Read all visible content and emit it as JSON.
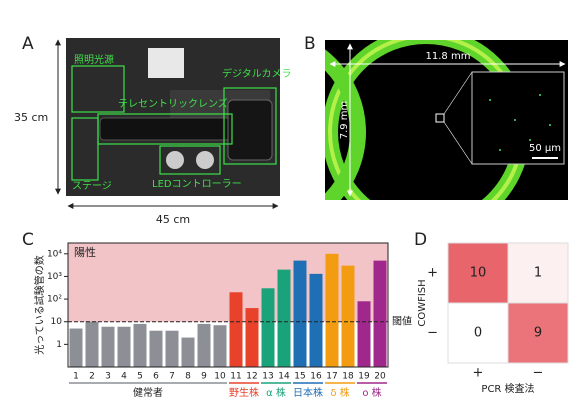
{
  "panel_a": {
    "letter": "A",
    "height_label": "35 cm",
    "width_label": "45 cm",
    "callouts": [
      "照明光源",
      "デジタルカメラ",
      "テレセントリックレンズ",
      "ステージ",
      "LEDコントローラー"
    ]
  },
  "panel_b": {
    "letter": "B",
    "width_label": "11.8 mm",
    "height_label": "7.9 mm",
    "scale_label": "50 µm"
  },
  "chart_data": [
    {
      "type": "bar",
      "panel": "C",
      "ylabel": "光っている試験管の数",
      "log_scale": true,
      "categories": [
        "1",
        "2",
        "3",
        "4",
        "5",
        "6",
        "7",
        "8",
        "9",
        "10",
        "11",
        "12",
        "13",
        "14",
        "15",
        "16",
        "17",
        "18",
        "19",
        "20"
      ],
      "series": [
        {
          "name": "健常者",
          "color": "#8c8f96",
          "label_color": "#222222",
          "values": [
            5,
            10,
            6,
            6,
            8,
            4,
            4,
            2,
            8,
            7,
            null,
            null,
            null,
            null,
            null,
            null,
            null,
            null,
            null,
            null
          ]
        },
        {
          "name": "野生株",
          "color": "#e8432a",
          "values": [
            null,
            null,
            null,
            null,
            null,
            null,
            null,
            null,
            null,
            null,
            200,
            40,
            null,
            null,
            null,
            null,
            null,
            null,
            null,
            null
          ]
        },
        {
          "name": "α 株",
          "color": "#1aa37a",
          "values": [
            null,
            null,
            null,
            null,
            null,
            null,
            null,
            null,
            null,
            null,
            null,
            null,
            300,
            2000,
            null,
            null,
            null,
            null,
            null,
            null
          ]
        },
        {
          "name": "日本株",
          "color": "#1f6fb5",
          "values": [
            null,
            null,
            null,
            null,
            null,
            null,
            null,
            null,
            null,
            null,
            null,
            null,
            null,
            null,
            5000,
            1300,
            null,
            null,
            null,
            null
          ]
        },
        {
          "name": "δ 株",
          "color": "#f39c12",
          "values": [
            null,
            null,
            null,
            null,
            null,
            null,
            null,
            null,
            null,
            null,
            null,
            null,
            null,
            null,
            null,
            null,
            10000,
            3000,
            null,
            null
          ]
        },
        {
          "name": "ο 株",
          "color": "#a0288c",
          "values": [
            null,
            null,
            null,
            null,
            null,
            null,
            null,
            null,
            null,
            null,
            null,
            null,
            null,
            null,
            null,
            null,
            null,
            null,
            80,
            5000
          ]
        }
      ],
      "ylim": [
        0.1,
        30000
      ],
      "yticks": [
        1,
        10,
        {
          "value": 100,
          "label": "10²"
        },
        {
          "value": 1000,
          "label": "10³"
        },
        {
          "value": 10000,
          "label": "10⁴"
        }
      ],
      "threshold": 10,
      "threshold_label": "閾値",
      "positive_label": "陽性",
      "positive_color": "#f2c4c8"
    },
    {
      "type": "heatmap",
      "panel": "D",
      "ylabel": "COWFISH",
      "xlabel": "PCR 検査法",
      "rows": [
        "+",
        "−"
      ],
      "columns": [
        "+",
        "−"
      ],
      "values": [
        [
          10,
          1
        ],
        [
          0,
          9
        ]
      ],
      "colors": [
        "#ffffff",
        "#e8656b"
      ]
    }
  ]
}
